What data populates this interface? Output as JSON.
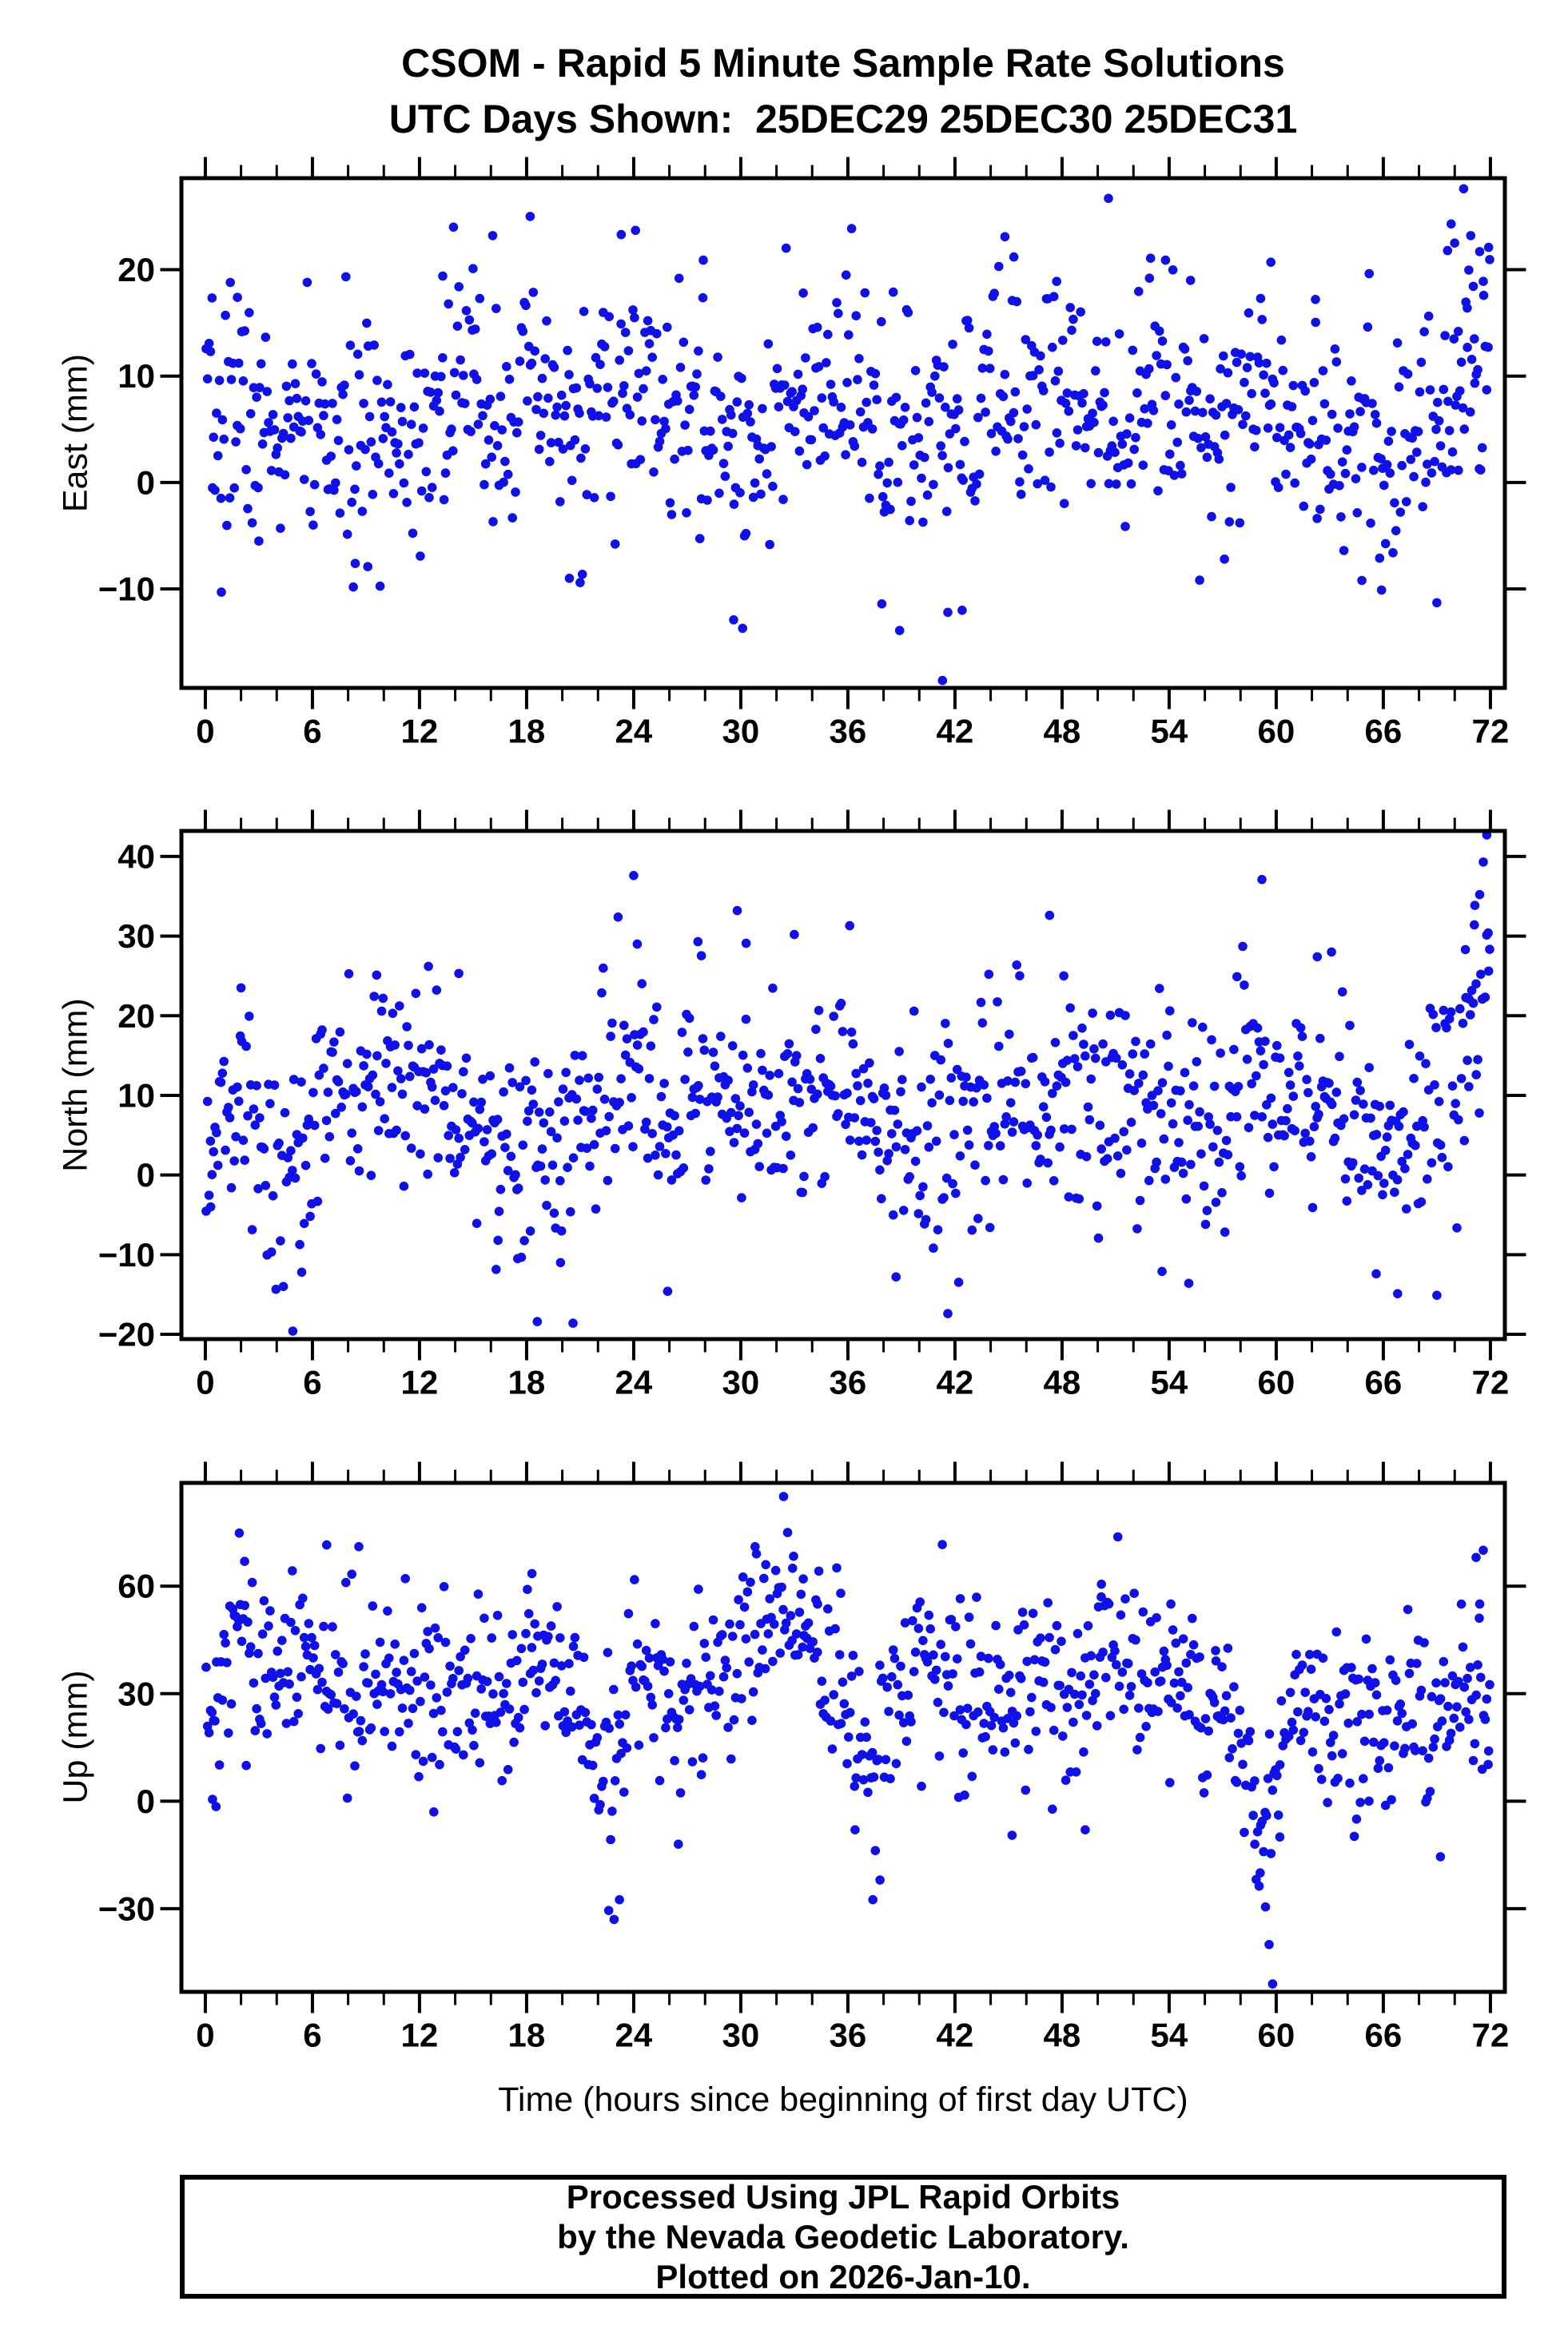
{
  "page": {
    "background_color": "#ffffff",
    "title_line1": "CSOM - Rapid 5 Minute Sample Rate Solutions",
    "title_line2": "UTC Days Shown:  25DEC29 25DEC30 25DEC31",
    "time_axis_label": "Time (hours since beginning of first day UTC)",
    "footer_lines": [
      "Processed Using JPL Rapid Orbits",
      "by the Nevada Geodetic Laboratory.",
      "Plotted on 2026-Jan-10."
    ],
    "frame_color": "#000000",
    "marker_color": "#1010e8"
  },
  "chart_data": [
    {
      "name": "east",
      "type": "scatter",
      "ylabel": "East (mm)",
      "marker": {
        "color": "#1010e8",
        "radius_px": 5.8,
        "shape": "circle"
      },
      "x": {
        "lim": [
          -1.34,
          72.81
        ],
        "major_ticks": [
          0,
          6,
          12,
          18,
          24,
          30,
          36,
          42,
          48,
          54,
          60,
          66,
          72
        ],
        "minor_tick_step": 2
      },
      "y": {
        "lim": [
          -19.3,
          28.6
        ],
        "major_ticks": [
          -10,
          0,
          10,
          20
        ]
      },
      "grid": false,
      "legend": false,
      "sampling": {
        "n_points": 864,
        "interval_hours": 0.0833,
        "seed": 7
      },
      "distribution": {
        "std_mm": 5.2,
        "mean_keyframes_hour_mm": [
          [
            0,
            5
          ],
          [
            2,
            7
          ],
          [
            4,
            4
          ],
          [
            6,
            5
          ],
          [
            8,
            3
          ],
          [
            10,
            5
          ],
          [
            12,
            6
          ],
          [
            14,
            9
          ],
          [
            16,
            7
          ],
          [
            18,
            8
          ],
          [
            20,
            5
          ],
          [
            22,
            7
          ],
          [
            24,
            9
          ],
          [
            26,
            6
          ],
          [
            28,
            5
          ],
          [
            30,
            4
          ],
          [
            32,
            6
          ],
          [
            34,
            6
          ],
          [
            36,
            8
          ],
          [
            38,
            6
          ],
          [
            40,
            3
          ],
          [
            42,
            4
          ],
          [
            44,
            8
          ],
          [
            46,
            8
          ],
          [
            48,
            9
          ],
          [
            50,
            8
          ],
          [
            52,
            7
          ],
          [
            54,
            9
          ],
          [
            56,
            6
          ],
          [
            58,
            8
          ],
          [
            60,
            9
          ],
          [
            62,
            6
          ],
          [
            64,
            4
          ],
          [
            66,
            3
          ],
          [
            68,
            4
          ],
          [
            70,
            8
          ],
          [
            71,
            12
          ],
          [
            72,
            11
          ]
        ]
      },
      "outlier_points_hour_mm": [
        [
          0.4,
          -0.5
        ],
        [
          0.9,
          -10.3
        ],
        [
          1.4,
          18.8
        ],
        [
          1.8,
          17.4
        ],
        [
          3.0,
          -5.5
        ],
        [
          8.4,
          -7.6
        ],
        [
          9.1,
          -7.9
        ],
        [
          13.3,
          19.4
        ],
        [
          13.9,
          24.0
        ],
        [
          15.0,
          20.1
        ],
        [
          16.1,
          23.2
        ],
        [
          18.2,
          25.0
        ],
        [
          20.4,
          -9.0
        ],
        [
          21.0,
          -9.4
        ],
        [
          23.3,
          23.3
        ],
        [
          24.1,
          23.7
        ],
        [
          27.9,
          20.9
        ],
        [
          29.6,
          -12.9
        ],
        [
          30.1,
          -13.7
        ],
        [
          33.5,
          17.8
        ],
        [
          35.9,
          19.5
        ],
        [
          37.9,
          -11.4
        ],
        [
          38.9,
          -13.9
        ],
        [
          41.3,
          -18.6
        ],
        [
          41.6,
          -12.2
        ],
        [
          42.4,
          -12.0
        ],
        [
          44.8,
          23.1
        ],
        [
          45.3,
          21.2
        ],
        [
          47.7,
          18.9
        ],
        [
          50.6,
          26.7
        ],
        [
          52.9,
          19.2
        ],
        [
          53.8,
          20.9
        ],
        [
          55.2,
          19.0
        ],
        [
          57.1,
          -7.2
        ],
        [
          59.7,
          20.7
        ],
        [
          62.2,
          17.2
        ],
        [
          64.8,
          -9.2
        ],
        [
          65.9,
          -10.1
        ],
        [
          69.0,
          -11.3
        ],
        [
          69.6,
          21.8
        ],
        [
          69.8,
          24.3
        ],
        [
          70.0,
          22.5
        ],
        [
          70.2,
          14.2
        ],
        [
          70.5,
          27.6
        ],
        [
          70.7,
          16.4
        ],
        [
          70.9,
          23.2
        ],
        [
          71.1,
          13.5
        ],
        [
          71.4,
          21.7
        ],
        [
          71.6,
          18.9
        ],
        [
          71.9,
          22.1
        ]
      ]
    },
    {
      "name": "north",
      "type": "scatter",
      "ylabel": "North (mm)",
      "marker": {
        "color": "#1010e8",
        "radius_px": 5.8,
        "shape": "circle"
      },
      "x": {
        "lim": [
          -1.34,
          72.81
        ],
        "major_ticks": [
          0,
          6,
          12,
          18,
          24,
          30,
          36,
          42,
          48,
          54,
          60,
          66,
          72
        ],
        "minor_tick_step": 2
      },
      "y": {
        "lim": [
          -20.6,
          43.2
        ],
        "major_ticks": [
          -20,
          -10,
          0,
          10,
          20,
          30,
          40
        ]
      },
      "grid": false,
      "legend": false,
      "sampling": {
        "n_points": 864,
        "interval_hours": 0.0833,
        "seed": 13
      },
      "distribution": {
        "std_mm": 6.5,
        "mean_keyframes_hour_mm": [
          [
            0,
            6
          ],
          [
            2,
            8
          ],
          [
            4,
            1
          ],
          [
            5,
            1
          ],
          [
            6,
            6
          ],
          [
            8,
            10
          ],
          [
            10,
            11
          ],
          [
            12,
            12
          ],
          [
            14,
            10
          ],
          [
            16,
            5
          ],
          [
            18,
            3
          ],
          [
            20,
            4
          ],
          [
            22,
            8
          ],
          [
            24,
            13
          ],
          [
            26,
            8
          ],
          [
            28,
            10
          ],
          [
            30,
            10
          ],
          [
            32,
            8
          ],
          [
            34,
            9
          ],
          [
            36,
            11
          ],
          [
            38,
            5
          ],
          [
            40,
            4
          ],
          [
            42,
            5
          ],
          [
            44,
            9
          ],
          [
            46,
            10
          ],
          [
            48,
            11
          ],
          [
            50,
            9
          ],
          [
            52,
            9
          ],
          [
            54,
            7
          ],
          [
            56,
            9
          ],
          [
            58,
            11
          ],
          [
            60,
            9
          ],
          [
            62,
            9
          ],
          [
            64,
            6
          ],
          [
            66,
            4
          ],
          [
            68,
            6
          ],
          [
            70,
            14
          ],
          [
            71,
            20
          ],
          [
            72,
            24
          ]
        ]
      },
      "outlier_points_hour_mm": [
        [
          0.3,
          -4.0
        ],
        [
          2.0,
          23.5
        ],
        [
          4.9,
          -19.6
        ],
        [
          5.4,
          -12.2
        ],
        [
          9.6,
          25.1
        ],
        [
          10.5,
          20.3
        ],
        [
          12.5,
          26.2
        ],
        [
          14.2,
          25.3
        ],
        [
          16.4,
          -8.2
        ],
        [
          17.5,
          -10.5
        ],
        [
          18.6,
          -18.4
        ],
        [
          19.9,
          -11.0
        ],
        [
          20.6,
          -18.6
        ],
        [
          24.0,
          37.6
        ],
        [
          24.2,
          29.0
        ],
        [
          25.9,
          -14.6
        ],
        [
          27.6,
          29.3
        ],
        [
          29.8,
          33.2
        ],
        [
          30.3,
          29.1
        ],
        [
          33.0,
          30.2
        ],
        [
          36.1,
          31.3
        ],
        [
          38.7,
          -12.8
        ],
        [
          41.6,
          -17.4
        ],
        [
          43.9,
          25.2
        ],
        [
          47.3,
          32.6
        ],
        [
          48.1,
          25.0
        ],
        [
          53.6,
          -12.1
        ],
        [
          55.1,
          -13.6
        ],
        [
          57.8,
          24.9
        ],
        [
          59.2,
          37.1
        ],
        [
          62.3,
          27.4
        ],
        [
          63.1,
          28.0
        ],
        [
          65.6,
          -12.4
        ],
        [
          66.8,
          -14.9
        ],
        [
          69.0,
          -15.1
        ],
        [
          70.6,
          28.3
        ],
        [
          70.8,
          22.1
        ],
        [
          71.1,
          31.4
        ],
        [
          71.2,
          24.0
        ],
        [
          71.4,
          35.2
        ],
        [
          71.6,
          39.3
        ],
        [
          71.8,
          43.0
        ],
        [
          71.9,
          25.6
        ]
      ]
    },
    {
      "name": "up",
      "type": "scatter",
      "ylabel": "Up (mm)",
      "marker": {
        "color": "#1010e8",
        "radius_px": 5.8,
        "shape": "circle"
      },
      "x": {
        "lim": [
          -1.34,
          72.81
        ],
        "major_ticks": [
          0,
          6,
          12,
          18,
          24,
          30,
          36,
          42,
          48,
          54,
          60,
          66,
          72
        ],
        "minor_tick_step": 2
      },
      "y": {
        "lim": [
          -53.2,
          88.8
        ],
        "major_ticks": [
          -30,
          0,
          30,
          60
        ]
      },
      "grid": false,
      "legend": false,
      "sampling": {
        "n_points": 864,
        "interval_hours": 0.0833,
        "seed": 29
      },
      "distribution": {
        "std_mm": 12,
        "mean_keyframes_hour_mm": [
          [
            0,
            20
          ],
          [
            1,
            32
          ],
          [
            2,
            44
          ],
          [
            3,
            34
          ],
          [
            4,
            33
          ],
          [
            5,
            38
          ],
          [
            6,
            42
          ],
          [
            7,
            37
          ],
          [
            8,
            32
          ],
          [
            9,
            30
          ],
          [
            10,
            28
          ],
          [
            11,
            32
          ],
          [
            12,
            38
          ],
          [
            13,
            28
          ],
          [
            14,
            34
          ],
          [
            15,
            27
          ],
          [
            16,
            25
          ],
          [
            17,
            30
          ],
          [
            18,
            40
          ],
          [
            19,
            34
          ],
          [
            20,
            31
          ],
          [
            21,
            22
          ],
          [
            22,
            10
          ],
          [
            23,
            10
          ],
          [
            24,
            38
          ],
          [
            25,
            31
          ],
          [
            26,
            24
          ],
          [
            27,
            28
          ],
          [
            28,
            30
          ],
          [
            29,
            32
          ],
          [
            30,
            45
          ],
          [
            31,
            50
          ],
          [
            32,
            52
          ],
          [
            33,
            50
          ],
          [
            34,
            45
          ],
          [
            35,
            40
          ],
          [
            36,
            16
          ],
          [
            37,
            14
          ],
          [
            38,
            22
          ],
          [
            39,
            28
          ],
          [
            40,
            34
          ],
          [
            41,
            35
          ],
          [
            42,
            28
          ],
          [
            43,
            30
          ],
          [
            44,
            34
          ],
          [
            45,
            28
          ],
          [
            46,
            34
          ],
          [
            47,
            37
          ],
          [
            48,
            30
          ],
          [
            49,
            25
          ],
          [
            50,
            40
          ],
          [
            51,
            32
          ],
          [
            52,
            38
          ],
          [
            53,
            34
          ],
          [
            54,
            38
          ],
          [
            55,
            28
          ],
          [
            56,
            20
          ],
          [
            57,
            28
          ],
          [
            58,
            18
          ],
          [
            59,
            -8
          ],
          [
            60,
            12
          ],
          [
            61,
            25
          ],
          [
            62,
            28
          ],
          [
            63,
            20
          ],
          [
            64,
            20
          ],
          [
            65,
            15
          ],
          [
            66,
            25
          ],
          [
            67,
            30
          ],
          [
            68,
            25
          ],
          [
            69,
            18
          ],
          [
            70,
            32
          ],
          [
            71,
            38
          ],
          [
            72,
            18
          ]
        ]
      },
      "outlier_points_hour_mm": [
        [
          0.4,
          0.5
        ],
        [
          0.6,
          -1.5
        ],
        [
          1.9,
          74.8
        ],
        [
          2.2,
          66.9
        ],
        [
          6.8,
          71.5
        ],
        [
          8.6,
          71.0
        ],
        [
          12.8,
          -3.0
        ],
        [
          18.3,
          63.5
        ],
        [
          22.6,
          -30.5
        ],
        [
          22.9,
          -33.0
        ],
        [
          23.2,
          -27.5
        ],
        [
          26.5,
          -12.0
        ],
        [
          30.8,
          71.0
        ],
        [
          31.4,
          66.0
        ],
        [
          32.4,
          85.0
        ],
        [
          32.9,
          65.0
        ],
        [
          33.5,
          62.0
        ],
        [
          34.3,
          55.0
        ],
        [
          35.6,
          58.0
        ],
        [
          36.4,
          -8.0
        ],
        [
          37.4,
          -27.5
        ],
        [
          37.8,
          -22.0
        ],
        [
          42.3,
          56.5
        ],
        [
          45.2,
          -9.5
        ],
        [
          49.3,
          -8.0
        ],
        [
          50.2,
          57.0
        ],
        [
          54.1,
          55.0
        ],
        [
          56.6,
          42.0
        ],
        [
          58.8,
          -12.0
        ],
        [
          59.1,
          -20.0
        ],
        [
          59.4,
          -29.5
        ],
        [
          59.6,
          -40.0
        ],
        [
          59.8,
          -51.0
        ],
        [
          60.2,
          -10.0
        ],
        [
          64.5,
          -5.0
        ],
        [
          65.2,
          0.0
        ],
        [
          69.2,
          -15.5
        ],
        [
          71.2,
          68.0
        ],
        [
          71.4,
          55.0
        ],
        [
          71.6,
          70.0
        ],
        [
          71.9,
          14.0
        ]
      ]
    }
  ]
}
